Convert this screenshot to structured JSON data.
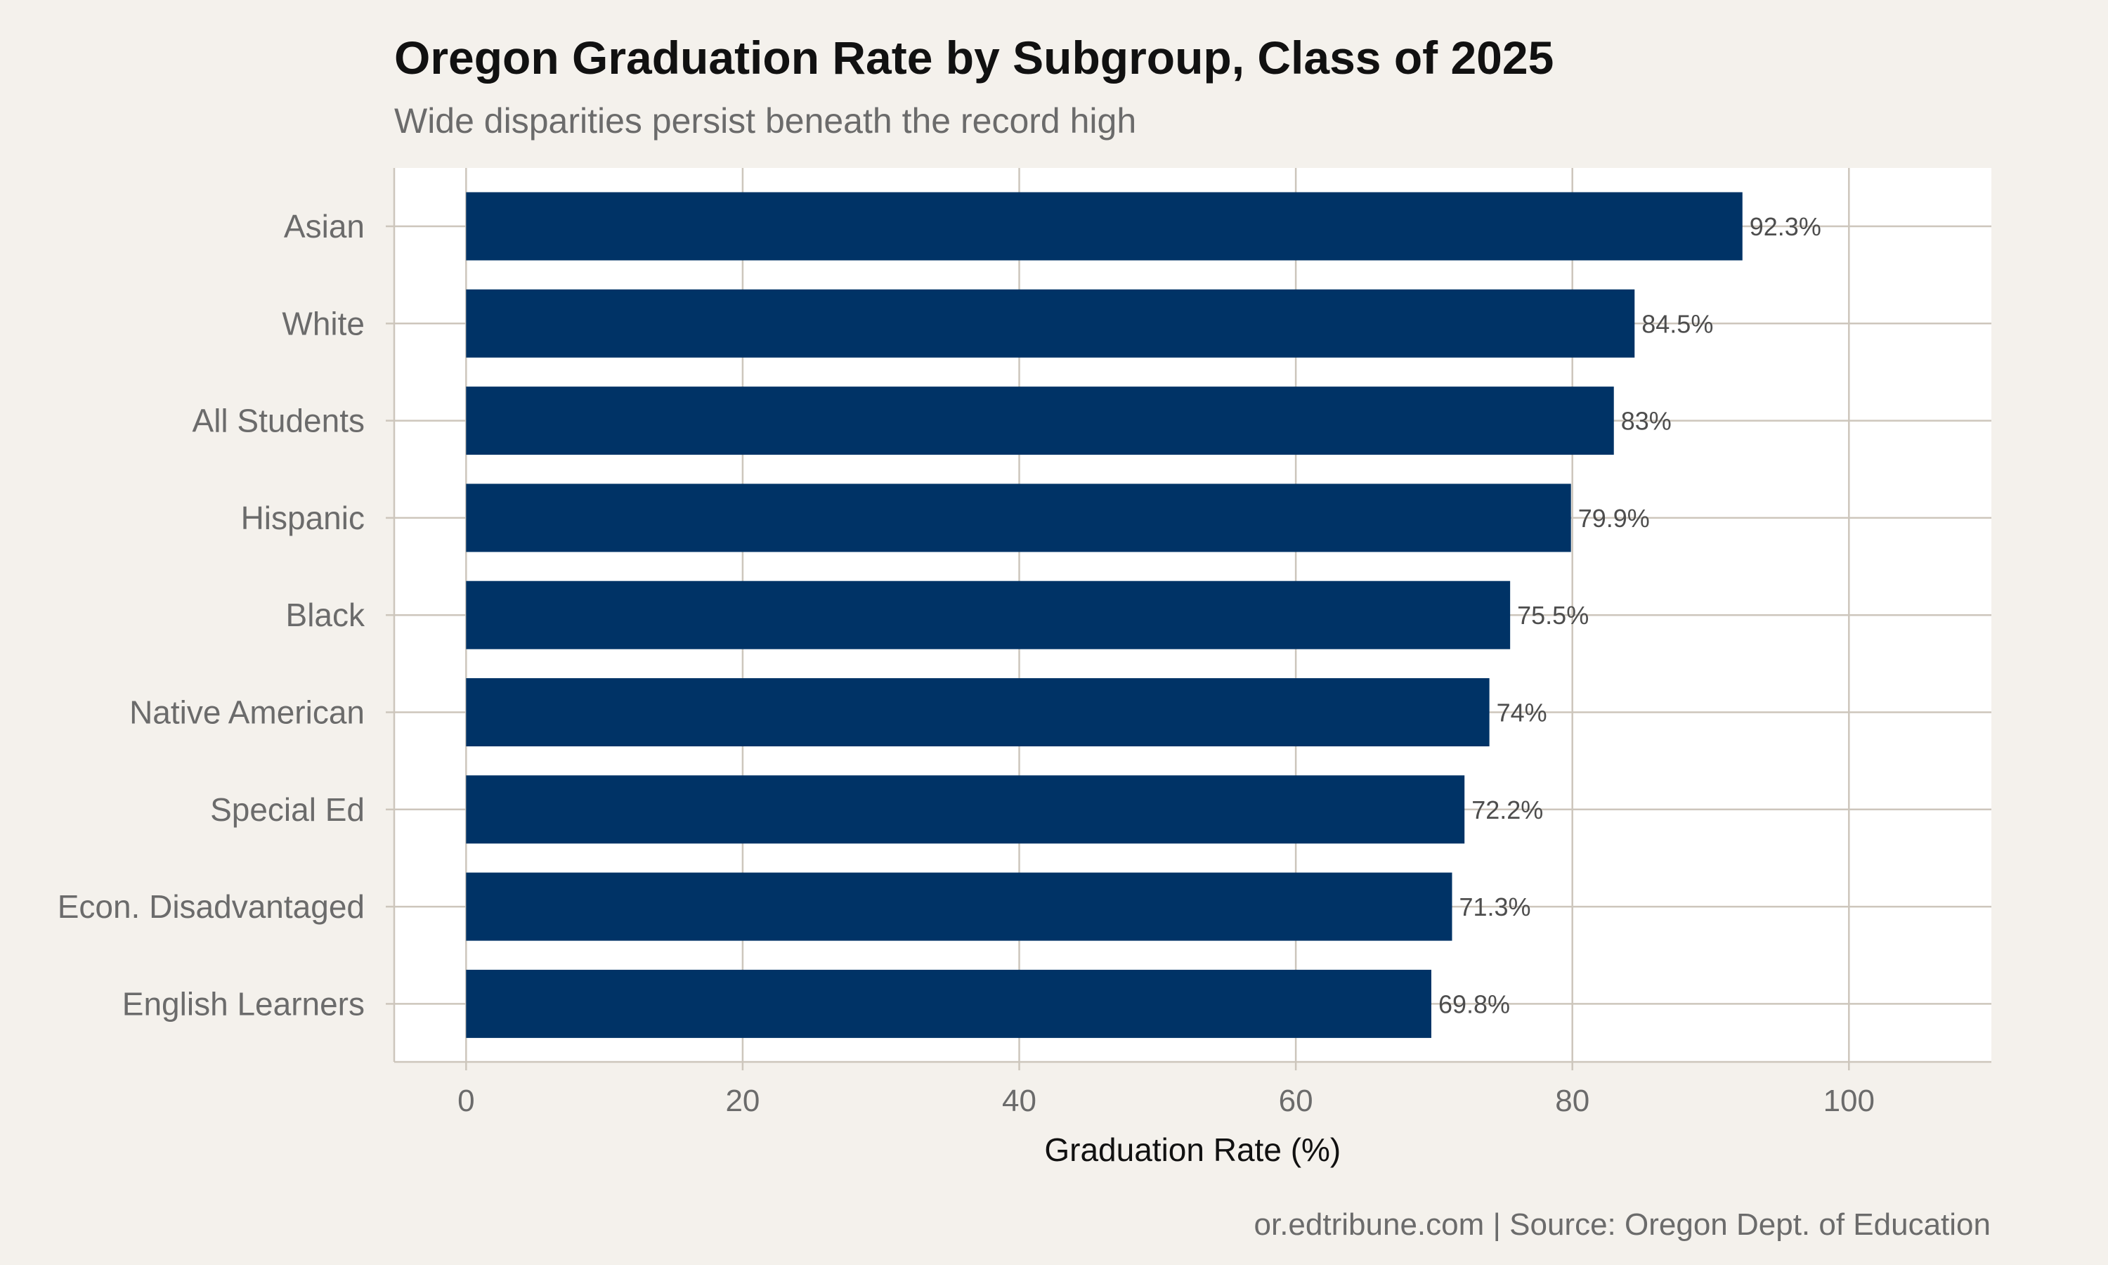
{
  "chart_data": {
    "type": "bar",
    "orientation": "horizontal",
    "title": "Oregon Graduation Rate by Subgroup, Class of 2025",
    "subtitle": "Wide disparities persist beneath the record high",
    "caption": "or.edtribune.com | Source: Oregon Dept. of Education",
    "xlabel": "Graduation Rate (%)",
    "ylabel": "",
    "categories": [
      "Asian",
      "White",
      "All Students",
      "Hispanic",
      "Black",
      "Native American",
      "Special Ed",
      "Econ. Disadvantaged",
      "English Learners"
    ],
    "values": [
      92.3,
      84.5,
      83,
      79.9,
      75.5,
      74,
      72.2,
      71.3,
      69.8
    ],
    "data_labels": [
      "92.3%",
      "84.5%",
      "83%",
      "79.9%",
      "75.5%",
      "74%",
      "72.2%",
      "71.3%",
      "69.8%"
    ],
    "xticks": [
      "0",
      "20",
      "40",
      "60",
      "80",
      "100"
    ],
    "xlim": [
      -5.2,
      110.3
    ],
    "grid": true,
    "legend": "none",
    "colors": {
      "bar": "#003366",
      "panel": "#ffffff",
      "background": "#f4f1ec",
      "grid": "#cdc6bc"
    }
  }
}
